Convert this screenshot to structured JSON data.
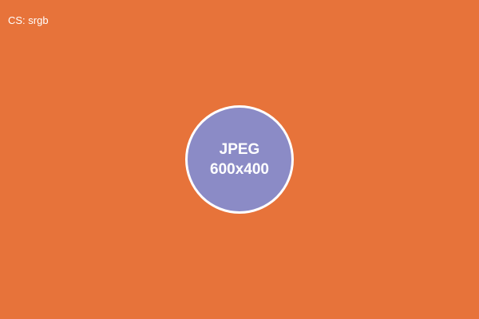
{
  "colors": {
    "background": "#E7733A",
    "badge_fill": "#8B8BC6",
    "text": "#FFFFFF",
    "badge_border": "#FFFFFF"
  },
  "header": {
    "colorspace_label": "CS: srgb"
  },
  "badge": {
    "format": "JPEG",
    "dimensions": "600x400"
  }
}
